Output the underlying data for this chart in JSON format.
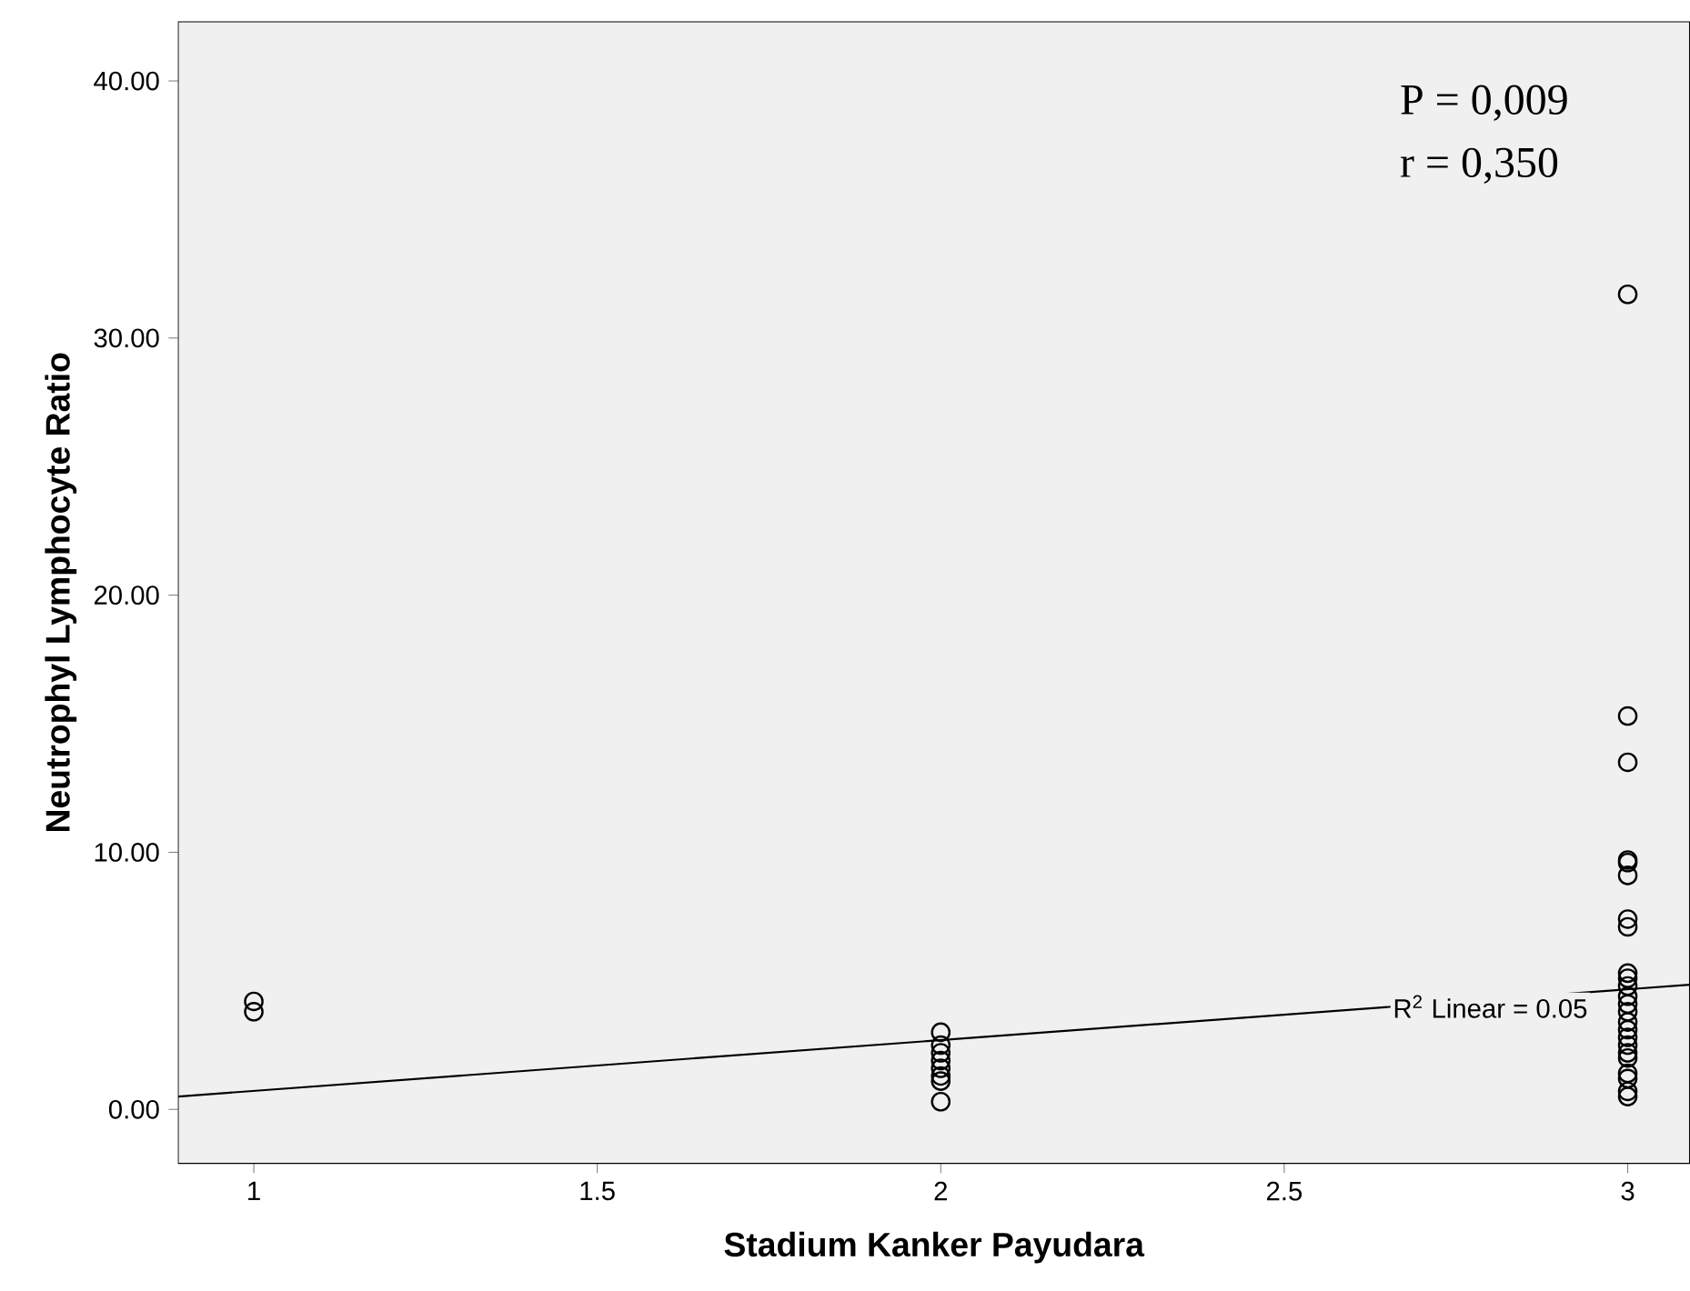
{
  "chart_data": {
    "type": "scatter",
    "xlabel": "Stadium Kanker Payudara",
    "ylabel": "Neutrophyl Lymphocyte Ratio",
    "xlim": [
      0.89,
      3.09
    ],
    "ylim": [
      -2.1,
      42.3
    ],
    "xticks": [
      1,
      1.5,
      2,
      2.5,
      3
    ],
    "yticks": [
      {
        "value": 0,
        "label": "0.00"
      },
      {
        "value": 10,
        "label": "10.00"
      },
      {
        "value": 20,
        "label": "20.00"
      },
      {
        "value": 30,
        "label": "30.00"
      },
      {
        "value": 40,
        "label": "40.00"
      }
    ],
    "series": [
      {
        "color": "#000000",
        "marker": "circle",
        "x": [
          1,
          1,
          2,
          2,
          2,
          2,
          2,
          2,
          2,
          2,
          3,
          3,
          3,
          3,
          3,
          3,
          3,
          3,
          3,
          3,
          3,
          3,
          3,
          3,
          3,
          3,
          3,
          3,
          3,
          3,
          3,
          3,
          3,
          3
        ],
        "values": [
          4.2,
          3.8,
          3.0,
          2.5,
          2.2,
          1.9,
          1.6,
          1.3,
          1.1,
          0.3,
          31.7,
          15.3,
          13.5,
          9.7,
          9.6,
          9.1,
          7.4,
          7.1,
          5.3,
          5.1,
          4.8,
          4.4,
          4.1,
          3.8,
          3.4,
          3.1,
          2.8,
          2.5,
          2.2,
          2.0,
          1.4,
          1.2,
          0.7,
          0.5
        ]
      },
      {
        "type": "line",
        "color": "#000000",
        "marker": "none",
        "x": [
          0.89,
          3.09
        ],
        "values": [
          0.5,
          4.85
        ]
      }
    ],
    "annotations": [
      "P = 0,009",
      "r = 0,350",
      {
        "text": "R$^{2}$ Linear = 0.05",
        "x": 2.8,
        "y": 4.0
      }
    ]
  }
}
